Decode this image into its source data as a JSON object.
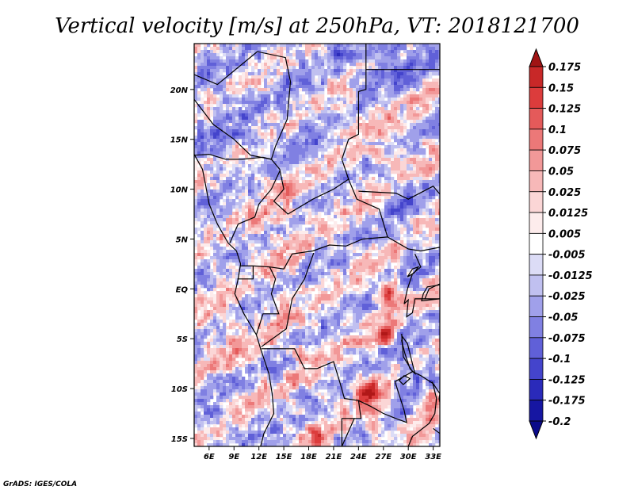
{
  "chart_data": {
    "type": "heatmap",
    "title": "Vertical velocity [m/s] at 250hPa, VT: 2018121700",
    "variable": "Vertical velocity",
    "units": "m/s",
    "level": "250hPa",
    "valid_time": "2018121700",
    "x_ticks": [
      {
        "value": 6,
        "label": "6E"
      },
      {
        "value": 9,
        "label": "9E"
      },
      {
        "value": 12,
        "label": "12E"
      },
      {
        "value": 15,
        "label": "15E"
      },
      {
        "value": 18,
        "label": "18E"
      },
      {
        "value": 21,
        "label": "21E"
      },
      {
        "value": 24,
        "label": "24E"
      },
      {
        "value": 27,
        "label": "27E"
      },
      {
        "value": 30,
        "label": "30E"
      },
      {
        "value": 33,
        "label": "33E"
      }
    ],
    "y_ticks": [
      {
        "value": 20,
        "label": "20N"
      },
      {
        "value": 15,
        "label": "15N"
      },
      {
        "value": 10,
        "label": "10N"
      },
      {
        "value": 5,
        "label": "5N"
      },
      {
        "value": 0,
        "label": "EQ"
      },
      {
        "value": -5,
        "label": "5S"
      },
      {
        "value": -10,
        "label": "10S"
      },
      {
        "value": -15,
        "label": "15S"
      }
    ],
    "xlim": [
      4.2,
      33.8
    ],
    "ylim": [
      -15.8,
      24.6
    ],
    "colorbar": {
      "levels": [
        "0.175",
        "0.15",
        "0.125",
        "0.1",
        "0.075",
        "0.05",
        "0.025",
        "0.0125",
        "0.005",
        "-0.005",
        "-0.0125",
        "-0.025",
        "-0.05",
        "-0.075",
        "-0.1",
        "-0.125",
        "-0.175",
        "-0.2"
      ],
      "colors": [
        "#b01818",
        "#c82828",
        "#dc3c3c",
        "#e45a5a",
        "#ec7878",
        "#f29898",
        "#f7b8b8",
        "#fbd6d6",
        "#fdecec",
        "#ffffff",
        "#dcdcf6",
        "#c0c0f0",
        "#a0a0ea",
        "#8080e2",
        "#6060d8",
        "#4444cc",
        "#2a2aba",
        "#1616a2",
        "#080884"
      ],
      "over_color": "#a01414",
      "under_color": "#0a0a8a"
    },
    "field_description": "alternating bands of rising (red) and sinking (blue) motion over West-Central Africa",
    "credit": "GrADS: IGES/COLA"
  }
}
